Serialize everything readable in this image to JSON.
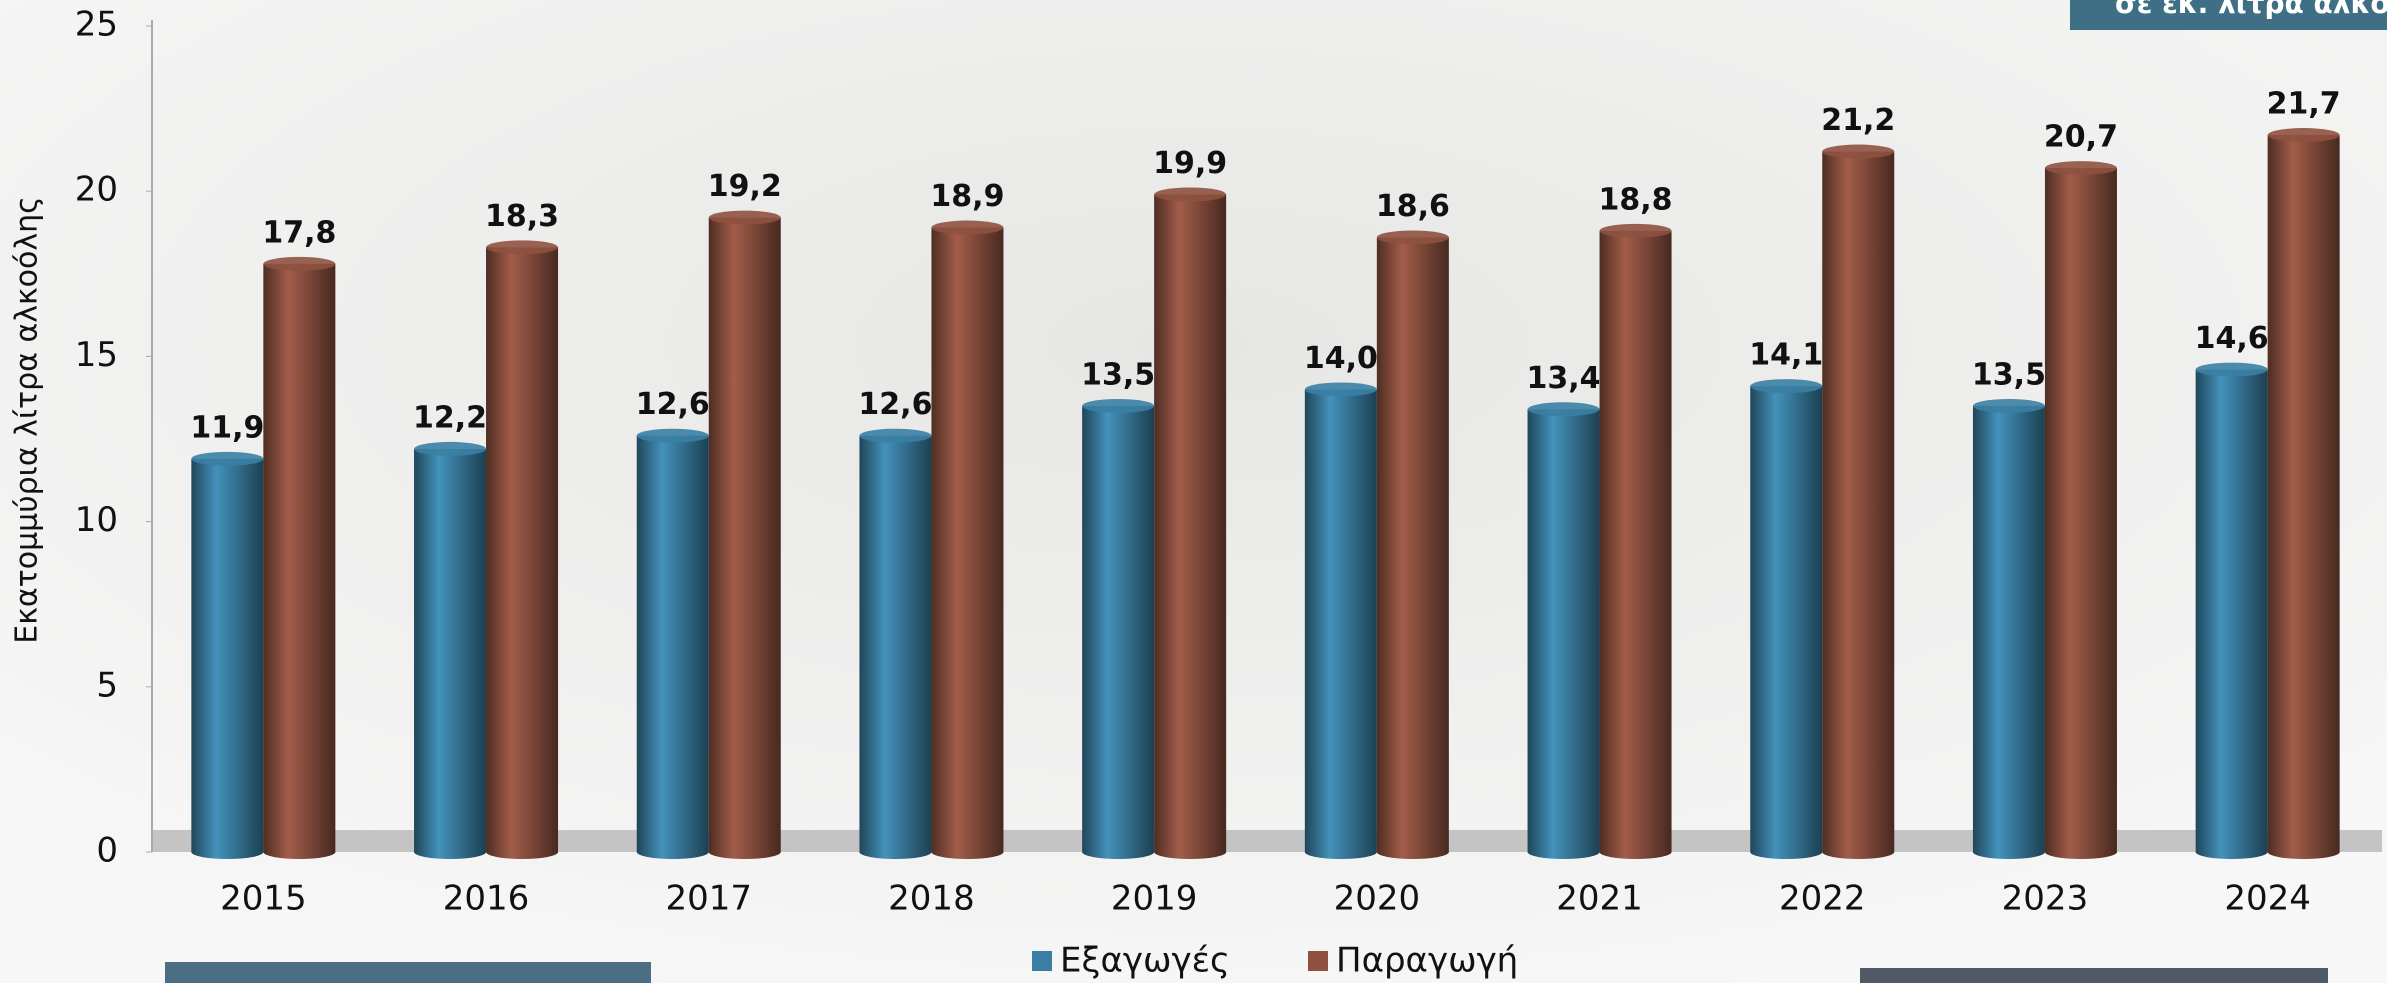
{
  "chart_data": {
    "type": "bar",
    "y_label": "Εκατομμύρια λίτρα αλκοόλης",
    "annotation": "σε εκ. λίτρα αλκοόλης",
    "categories": [
      "2015",
      "2016",
      "2017",
      "2018",
      "2019",
      "2020",
      "2021",
      "2022",
      "2023",
      "2024"
    ],
    "series": [
      {
        "name": "Εξαγωγές",
        "color": "#3a7fa3",
        "values": [
          11.9,
          12.2,
          12.6,
          12.6,
          13.5,
          14.0,
          13.4,
          14.1,
          13.5,
          14.6
        ],
        "value_labels": [
          "11,9",
          "12,2",
          "12,6",
          "12,6",
          "13,5",
          "14,0",
          "13,4",
          "14,1",
          "13,5",
          "14,6"
        ]
      },
      {
        "name": "Παραγωγή",
        "color": "#8e5140",
        "values": [
          17.8,
          18.3,
          19.2,
          18.9,
          19.9,
          18.6,
          18.8,
          21.2,
          20.7,
          21.7
        ],
        "value_labels": [
          "17,8",
          "18,3",
          "19,2",
          "18,9",
          "19,9",
          "18,6",
          "18,8",
          "21,2",
          "20,7",
          "21,7"
        ]
      }
    ],
    "ylim": [
      0,
      25
    ],
    "yticks": [
      0,
      5,
      10,
      15,
      20,
      25
    ],
    "legend": "bottom"
  }
}
